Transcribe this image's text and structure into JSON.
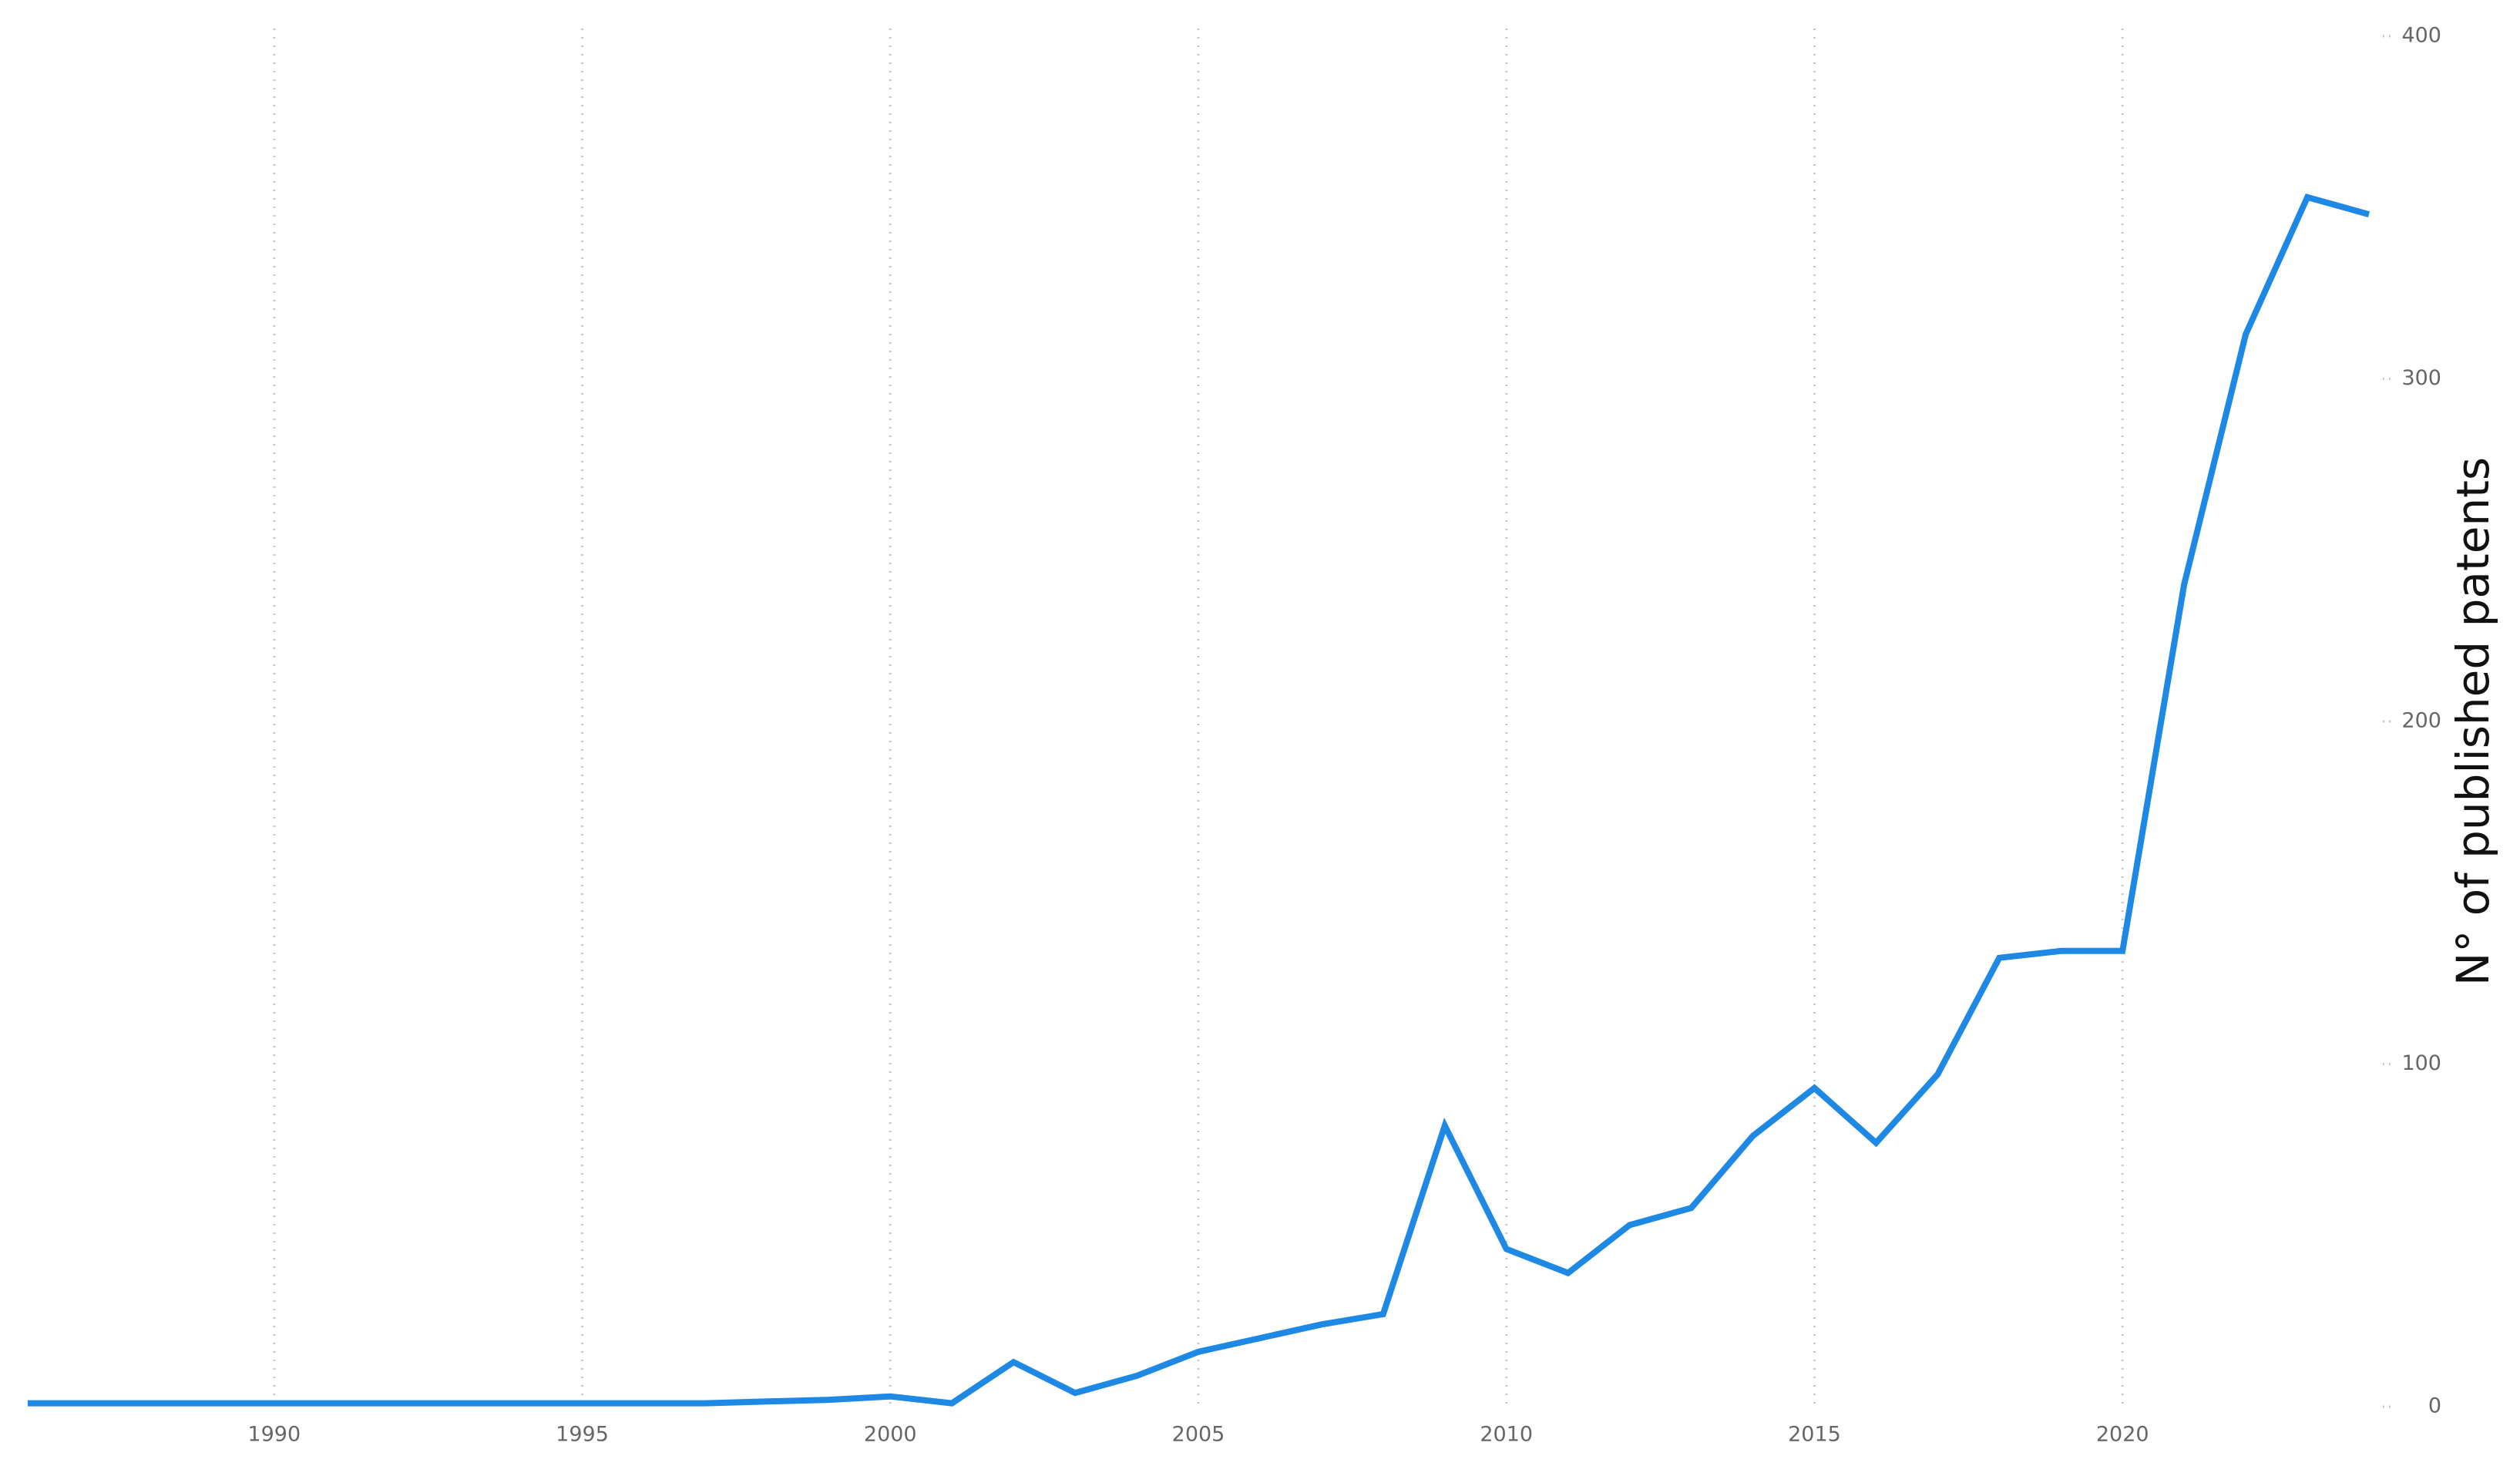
{
  "chart_data": {
    "type": "line",
    "title": "",
    "xlabel": "",
    "ylabel": "N° of published patents",
    "xlim": [
      1986,
      2024
    ],
    "ylim": [
      0,
      400
    ],
    "xticks": [
      1990,
      1995,
      2000,
      2005,
      2010,
      2015,
      2020
    ],
    "yticks": [
      0,
      100,
      200,
      300,
      400
    ],
    "x_gridlines": true,
    "y_axis_side": "right",
    "legend": "none",
    "series": [
      {
        "color": "#1E88E5",
        "x": [
          1986,
          1987,
          1988,
          1989,
          1990,
          1991,
          1992,
          1993,
          1994,
          1995,
          1996,
          1997,
          1998,
          1999,
          2000,
          2001,
          2002,
          2003,
          2004,
          2005,
          2006,
          2007,
          2008,
          2009,
          2010,
          2011,
          2012,
          2013,
          2014,
          2015,
          2016,
          2017,
          2018,
          2019,
          2020,
          2021,
          2022,
          2023,
          2024
        ],
        "values": [
          1,
          1,
          1,
          1,
          1,
          1,
          1,
          1,
          1,
          1,
          1,
          1,
          1.5,
          2,
          3,
          1,
          13,
          4,
          9,
          16,
          20,
          24,
          27,
          82,
          46,
          39,
          53,
          58,
          79,
          93,
          77,
          97,
          131,
          133,
          133,
          240,
          313,
          353,
          348
        ]
      }
    ]
  }
}
